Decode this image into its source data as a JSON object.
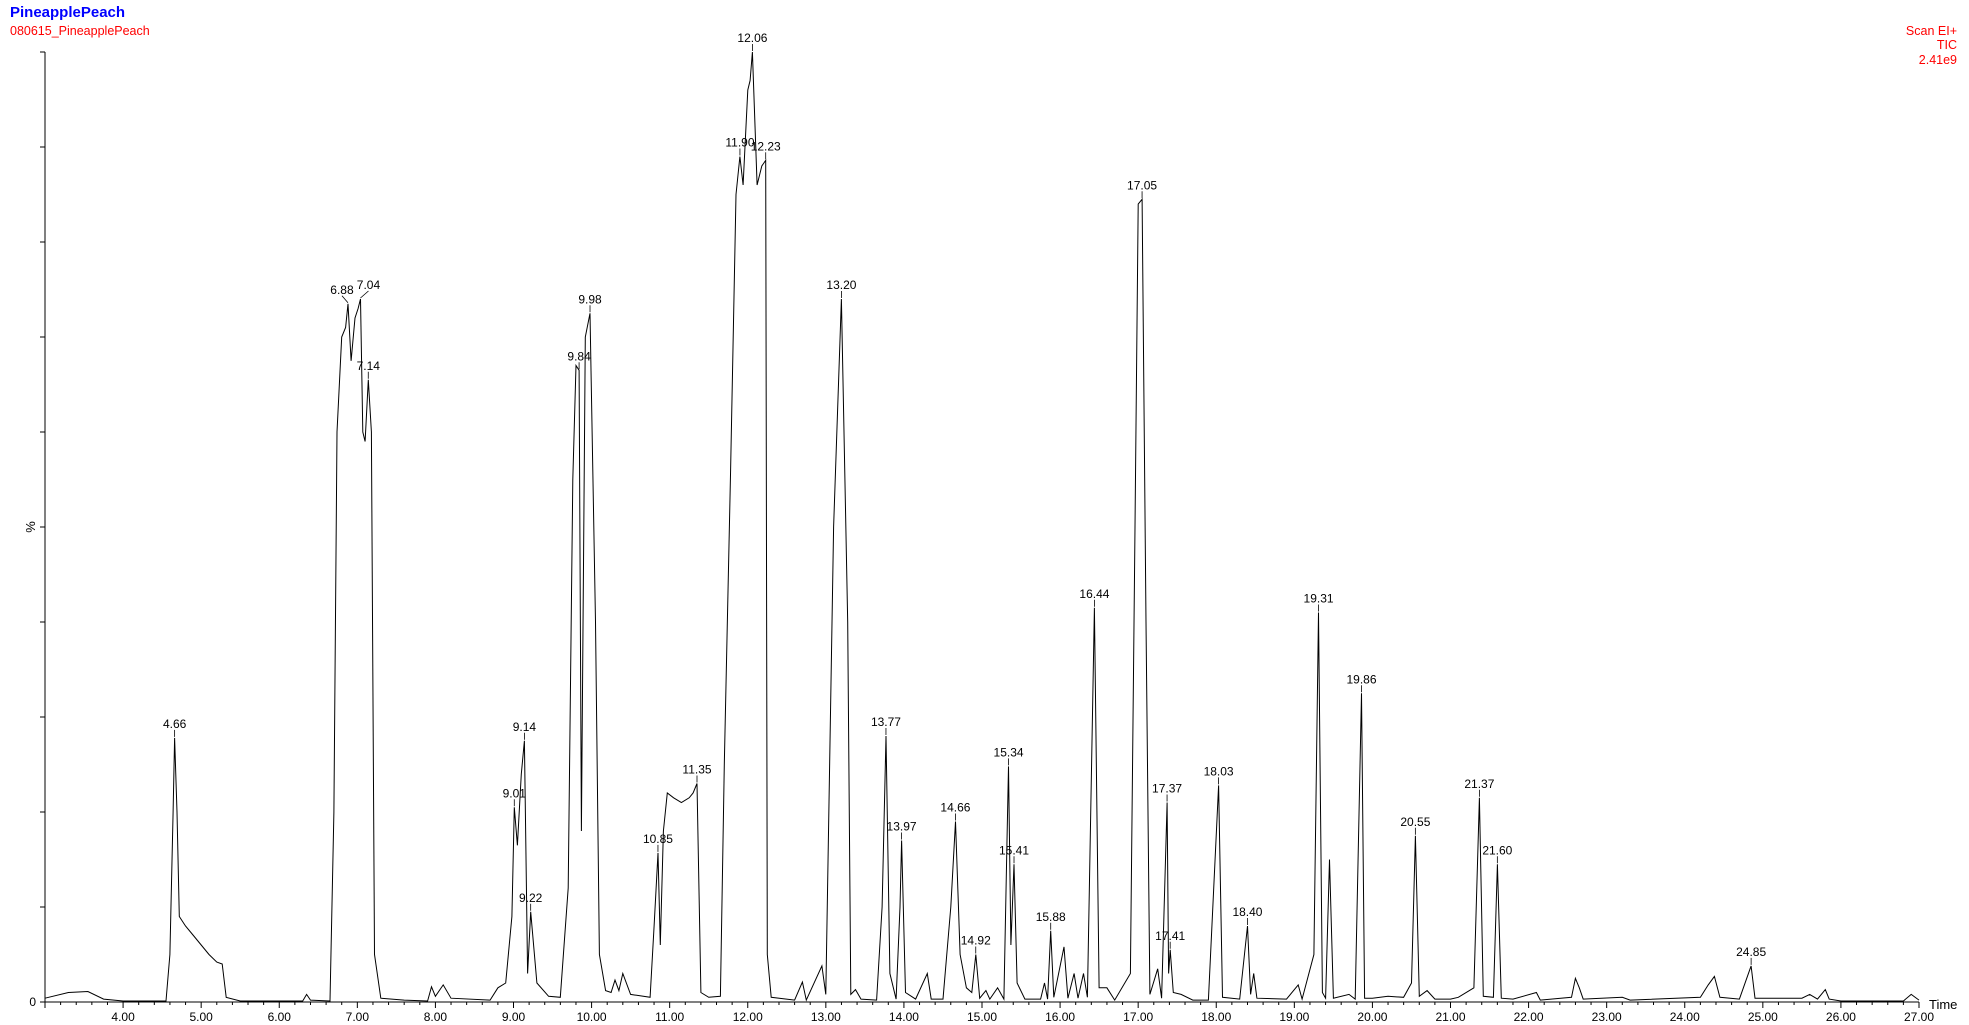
{
  "header": {
    "title": "PineapplePeach",
    "subtitle": "080615_PineapplePeach",
    "scan_mode": "Scan EI+",
    "trace": "TIC",
    "intensity": "2.41e9",
    "colors": {
      "title": "#0000ff",
      "info": "#ff0000",
      "trace": "#000000"
    }
  },
  "chart_data": {
    "type": "line",
    "title": "PineapplePeach",
    "xlabel": "Time",
    "ylabel": "%",
    "xlim": [
      3.0,
      27.0
    ],
    "ylim": [
      0,
      100
    ],
    "xticks": [
      "4.00",
      "5.00",
      "6.00",
      "7.00",
      "8.00",
      "9.00",
      "10.00",
      "11.00",
      "12.00",
      "13.00",
      "14.00",
      "15.00",
      "16.00",
      "17.00",
      "18.00",
      "19.00",
      "20.00",
      "21.00",
      "22.00",
      "23.00",
      "24.00",
      "25.00",
      "26.00",
      "27.00"
    ],
    "grid": false,
    "legend": "none",
    "series": [
      {
        "points": [
          [
            3.0,
            0.4
          ],
          [
            3.3,
            1.0
          ],
          [
            3.55,
            1.1
          ],
          [
            3.75,
            0.3
          ],
          [
            4.0,
            0.1
          ],
          [
            4.55,
            0.1
          ],
          [
            4.6,
            5
          ],
          [
            4.64,
            20
          ],
          [
            4.66,
            27.8
          ],
          [
            4.69,
            20
          ],
          [
            4.72,
            9
          ],
          [
            4.8,
            8
          ],
          [
            4.9,
            7
          ],
          [
            5.0,
            6
          ],
          [
            5.1,
            5
          ],
          [
            5.2,
            4.2
          ],
          [
            5.27,
            4
          ],
          [
            5.32,
            0.5
          ],
          [
            5.5,
            0.1
          ],
          [
            6.3,
            0.1
          ],
          [
            6.35,
            0.8
          ],
          [
            6.4,
            0.2
          ],
          [
            6.65,
            0.1
          ],
          [
            6.7,
            20
          ],
          [
            6.74,
            60
          ],
          [
            6.8,
            70
          ],
          [
            6.85,
            71
          ],
          [
            6.88,
            73.5
          ],
          [
            6.92,
            67.5
          ],
          [
            6.97,
            72
          ],
          [
            7.01,
            73
          ],
          [
            7.04,
            74
          ],
          [
            7.07,
            60
          ],
          [
            7.1,
            59
          ],
          [
            7.14,
            65.5
          ],
          [
            7.18,
            60
          ],
          [
            7.22,
            5
          ],
          [
            7.3,
            0.4
          ],
          [
            7.6,
            0.2
          ],
          [
            7.9,
            0.1
          ],
          [
            7.95,
            1.6
          ],
          [
            8.0,
            0.6
          ],
          [
            8.1,
            1.8
          ],
          [
            8.2,
            0.4
          ],
          [
            8.7,
            0.2
          ],
          [
            8.8,
            1.5
          ],
          [
            8.9,
            2
          ],
          [
            8.98,
            9
          ],
          [
            9.01,
            20.5
          ],
          [
            9.05,
            16.5
          ],
          [
            9.1,
            24
          ],
          [
            9.14,
            27.5
          ],
          [
            9.18,
            3
          ],
          [
            9.22,
            9.5
          ],
          [
            9.3,
            2
          ],
          [
            9.45,
            0.6
          ],
          [
            9.6,
            0.5
          ],
          [
            9.7,
            12
          ],
          [
            9.76,
            55
          ],
          [
            9.8,
            67
          ],
          [
            9.84,
            66.5
          ],
          [
            9.87,
            18
          ],
          [
            9.92,
            70
          ],
          [
            9.98,
            72.5
          ],
          [
            10.05,
            40
          ],
          [
            10.1,
            5
          ],
          [
            10.18,
            1.2
          ],
          [
            10.25,
            1
          ],
          [
            10.3,
            2.3
          ],
          [
            10.35,
            1.2
          ],
          [
            10.4,
            3
          ],
          [
            10.5,
            0.8
          ],
          [
            10.75,
            0.5
          ],
          [
            10.8,
            8
          ],
          [
            10.85,
            15.7
          ],
          [
            10.88,
            6
          ],
          [
            10.92,
            18
          ],
          [
            10.97,
            22
          ],
          [
            11.05,
            21.5
          ],
          [
            11.15,
            21
          ],
          [
            11.25,
            21.5
          ],
          [
            11.3,
            22
          ],
          [
            11.35,
            23
          ],
          [
            11.4,
            1
          ],
          [
            11.5,
            0.5
          ],
          [
            11.65,
            0.6
          ],
          [
            11.7,
            25
          ],
          [
            11.78,
            56
          ],
          [
            11.85,
            85
          ],
          [
            11.9,
            89
          ],
          [
            11.94,
            86
          ],
          [
            12.0,
            96
          ],
          [
            12.03,
            97
          ],
          [
            12.06,
            100
          ],
          [
            12.12,
            86
          ],
          [
            12.18,
            88
          ],
          [
            12.23,
            88.6
          ],
          [
            12.25,
            5
          ],
          [
            12.3,
            0.5
          ],
          [
            12.6,
            0.2
          ],
          [
            12.7,
            2.1
          ],
          [
            12.75,
            0.2
          ],
          [
            12.95,
            3.8
          ],
          [
            13.0,
            0.8
          ],
          [
            13.1,
            50
          ],
          [
            13.2,
            74
          ],
          [
            13.28,
            40
          ],
          [
            13.32,
            0.8
          ],
          [
            13.38,
            1.3
          ],
          [
            13.45,
            0.3
          ],
          [
            13.65,
            0.2
          ],
          [
            13.72,
            10
          ],
          [
            13.77,
            28
          ],
          [
            13.82,
            3
          ],
          [
            13.9,
            0.3
          ],
          [
            13.95,
            10
          ],
          [
            13.97,
            17
          ],
          [
            14.02,
            1
          ],
          [
            14.15,
            0.3
          ],
          [
            14.3,
            3
          ],
          [
            14.35,
            0.3
          ],
          [
            14.5,
            0.3
          ],
          [
            14.6,
            10
          ],
          [
            14.66,
            19
          ],
          [
            14.72,
            5
          ],
          [
            14.8,
            1.5
          ],
          [
            14.87,
            1
          ],
          [
            14.92,
            5
          ],
          [
            14.97,
            0.4
          ],
          [
            15.05,
            1.2
          ],
          [
            15.1,
            0.3
          ],
          [
            15.2,
            1.5
          ],
          [
            15.28,
            0.3
          ],
          [
            15.32,
            17
          ],
          [
            15.34,
            24.8
          ],
          [
            15.37,
            6
          ],
          [
            15.41,
            14.5
          ],
          [
            15.45,
            2
          ],
          [
            15.55,
            0.3
          ],
          [
            15.75,
            0.3
          ],
          [
            15.8,
            2
          ],
          [
            15.84,
            0.3
          ],
          [
            15.88,
            7.5
          ],
          [
            15.92,
            0.5
          ],
          [
            16.05,
            5.8
          ],
          [
            16.1,
            0.4
          ],
          [
            16.18,
            3
          ],
          [
            16.23,
            0.4
          ],
          [
            16.3,
            3
          ],
          [
            16.35,
            0.5
          ],
          [
            16.44,
            41.5
          ],
          [
            16.5,
            1.5
          ],
          [
            16.6,
            1.5
          ],
          [
            16.7,
            0.2
          ],
          [
            16.9,
            3
          ],
          [
            16.96,
            50
          ],
          [
            17.0,
            84
          ],
          [
            17.05,
            84.5
          ],
          [
            17.1,
            40
          ],
          [
            17.15,
            0.8
          ],
          [
            17.25,
            3.5
          ],
          [
            17.3,
            0.4
          ],
          [
            17.37,
            21
          ],
          [
            17.39,
            3
          ],
          [
            17.41,
            5.5
          ],
          [
            17.45,
            1
          ],
          [
            17.55,
            0.8
          ],
          [
            17.7,
            0.2
          ],
          [
            17.9,
            0.2
          ],
          [
            18.03,
            22.8
          ],
          [
            18.08,
            0.5
          ],
          [
            18.3,
            0.3
          ],
          [
            18.4,
            8
          ],
          [
            18.44,
            0.8
          ],
          [
            18.48,
            3
          ],
          [
            18.52,
            0.4
          ],
          [
            18.9,
            0.3
          ],
          [
            19.05,
            1.8
          ],
          [
            19.1,
            0.3
          ],
          [
            19.25,
            5
          ],
          [
            19.31,
            41
          ],
          [
            19.36,
            1
          ],
          [
            19.4,
            0.4
          ],
          [
            19.45,
            15
          ],
          [
            19.5,
            0.4
          ],
          [
            19.7,
            0.8
          ],
          [
            19.78,
            0.3
          ],
          [
            19.86,
            32.5
          ],
          [
            19.9,
            0.4
          ],
          [
            20.0,
            0.4
          ],
          [
            20.2,
            0.6
          ],
          [
            20.4,
            0.5
          ],
          [
            20.5,
            2
          ],
          [
            20.55,
            17.5
          ],
          [
            20.6,
            0.6
          ],
          [
            20.7,
            1.2
          ],
          [
            20.8,
            0.3
          ],
          [
            21.0,
            0.3
          ],
          [
            21.1,
            0.5
          ],
          [
            21.3,
            1.5
          ],
          [
            21.37,
            21.5
          ],
          [
            21.42,
            0.6
          ],
          [
            21.55,
            0.5
          ],
          [
            21.6,
            14.5
          ],
          [
            21.65,
            0.4
          ],
          [
            21.8,
            0.3
          ],
          [
            22.1,
            1
          ],
          [
            22.15,
            0.2
          ],
          [
            22.55,
            0.5
          ],
          [
            22.6,
            2.5
          ],
          [
            22.65,
            1.5
          ],
          [
            22.7,
            0.3
          ],
          [
            23.2,
            0.5
          ],
          [
            23.3,
            0.2
          ],
          [
            24.2,
            0.5
          ],
          [
            24.3,
            1.8
          ],
          [
            24.38,
            2.7
          ],
          [
            24.45,
            0.5
          ],
          [
            24.7,
            0.3
          ],
          [
            24.85,
            3.8
          ],
          [
            24.9,
            0.4
          ],
          [
            25.5,
            0.4
          ],
          [
            25.6,
            0.8
          ],
          [
            25.7,
            0.3
          ],
          [
            25.8,
            1.3
          ],
          [
            25.85,
            0.3
          ],
          [
            26.0,
            0.1
          ],
          [
            26.8,
            0.1
          ],
          [
            26.9,
            0.8
          ],
          [
            27.0,
            0.2
          ]
        ]
      }
    ],
    "peak_labels": [
      {
        "x": 4.66,
        "y": 27.8,
        "label": "4.66"
      },
      {
        "x": 6.88,
        "y": 73.5,
        "label": "6.88"
      },
      {
        "x": 7.04,
        "y": 74.0,
        "label": "7.04"
      },
      {
        "x": 7.14,
        "y": 65.5,
        "label": "7.14"
      },
      {
        "x": 9.01,
        "y": 20.5,
        "label": "9.01"
      },
      {
        "x": 9.14,
        "y": 27.5,
        "label": "9.14"
      },
      {
        "x": 9.22,
        "y": 9.5,
        "label": "9.22"
      },
      {
        "x": 9.84,
        "y": 66.5,
        "label": "9.84"
      },
      {
        "x": 9.98,
        "y": 72.5,
        "label": "9.98"
      },
      {
        "x": 10.85,
        "y": 15.7,
        "label": "10.85"
      },
      {
        "x": 11.35,
        "y": 23.0,
        "label": "11.35"
      },
      {
        "x": 11.9,
        "y": 89.0,
        "label": "11.90"
      },
      {
        "x": 12.06,
        "y": 100.0,
        "label": "12.06"
      },
      {
        "x": 12.23,
        "y": 88.6,
        "label": "12.23"
      },
      {
        "x": 13.2,
        "y": 74.0,
        "label": "13.20"
      },
      {
        "x": 13.77,
        "y": 28.0,
        "label": "13.77"
      },
      {
        "x": 13.97,
        "y": 17.0,
        "label": "13.97"
      },
      {
        "x": 14.66,
        "y": 19.0,
        "label": "14.66"
      },
      {
        "x": 14.92,
        "y": 5.0,
        "label": "14.92"
      },
      {
        "x": 15.34,
        "y": 24.8,
        "label": "15.34"
      },
      {
        "x": 15.41,
        "y": 14.5,
        "label": "15.41"
      },
      {
        "x": 15.88,
        "y": 7.5,
        "label": "15.88"
      },
      {
        "x": 16.44,
        "y": 41.5,
        "label": "16.44"
      },
      {
        "x": 17.05,
        "y": 84.5,
        "label": "17.05"
      },
      {
        "x": 17.37,
        "y": 21.0,
        "label": "17.37"
      },
      {
        "x": 17.41,
        "y": 5.5,
        "label": "17.41"
      },
      {
        "x": 18.03,
        "y": 22.8,
        "label": "18.03"
      },
      {
        "x": 18.4,
        "y": 8.0,
        "label": "18.40"
      },
      {
        "x": 19.31,
        "y": 41.0,
        "label": "19.31"
      },
      {
        "x": 19.86,
        "y": 32.5,
        "label": "19.86"
      },
      {
        "x": 20.55,
        "y": 17.5,
        "label": "20.55"
      },
      {
        "x": 21.37,
        "y": 21.5,
        "label": "21.37"
      },
      {
        "x": 21.6,
        "y": 14.5,
        "label": "21.60"
      },
      {
        "x": 24.85,
        "y": 3.8,
        "label": "24.85"
      }
    ]
  }
}
